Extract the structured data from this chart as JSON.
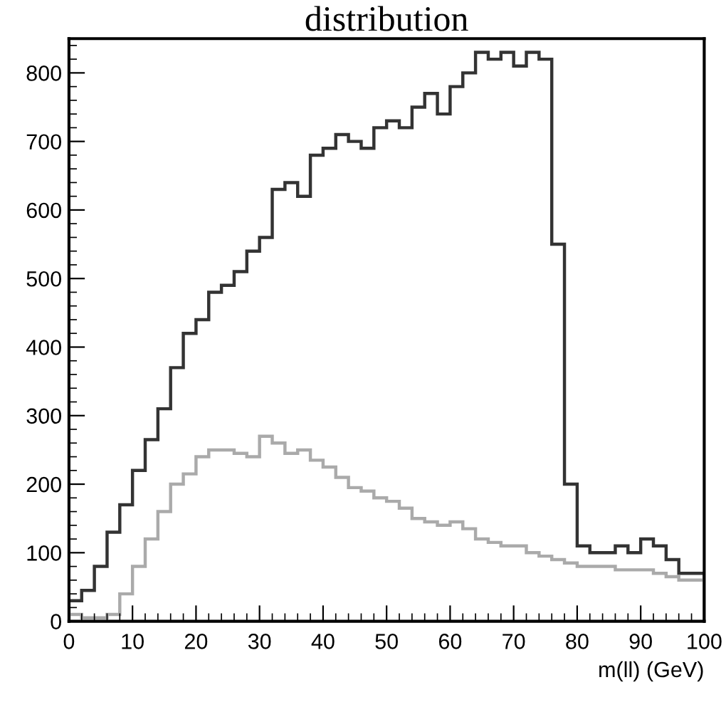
{
  "chart_data": {
    "type": "histogram",
    "title": "distribution",
    "xlabel": "m(ll) (GeV)",
    "bins": [
      0,
      2,
      4,
      6,
      8,
      10,
      12,
      14,
      16,
      18,
      20,
      22,
      24,
      26,
      28,
      30,
      32,
      34,
      36,
      38,
      40,
      42,
      44,
      46,
      48,
      50,
      52,
      54,
      56,
      58,
      60,
      62,
      64,
      66,
      68,
      70,
      72,
      74,
      76,
      78,
      80,
      82,
      84,
      86,
      88,
      90,
      92,
      94,
      96,
      98,
      100
    ],
    "series": [
      {
        "color": "#333333",
        "values": [
          30,
          45,
          80,
          130,
          170,
          220,
          265,
          310,
          370,
          420,
          440,
          480,
          490,
          510,
          540,
          560,
          630,
          640,
          620,
          680,
          690,
          710,
          700,
          690,
          720,
          730,
          720,
          750,
          770,
          740,
          780,
          800,
          830,
          820,
          830,
          810,
          830,
          820,
          550,
          200,
          110,
          100,
          100,
          110,
          100,
          120,
          110,
          90,
          70,
          70
        ]
      },
      {
        "color": "#aaaaaa",
        "values": [
          10,
          5,
          5,
          10,
          40,
          80,
          120,
          160,
          200,
          215,
          240,
          250,
          250,
          245,
          240,
          270,
          260,
          245,
          250,
          235,
          225,
          210,
          195,
          190,
          180,
          175,
          165,
          150,
          145,
          140,
          145,
          135,
          120,
          115,
          110,
          110,
          100,
          95,
          90,
          85,
          80,
          80,
          80,
          75,
          75,
          75,
          70,
          65,
          60,
          60
        ]
      }
    ],
    "xlim": [
      0,
      100
    ],
    "ylim": [
      0,
      850
    ],
    "xticks": [
      0,
      10,
      20,
      30,
      40,
      50,
      60,
      70,
      80,
      90,
      100
    ],
    "yticks": [
      0,
      100,
      200,
      300,
      400,
      500,
      600,
      700,
      800
    ],
    "grid": false
  }
}
